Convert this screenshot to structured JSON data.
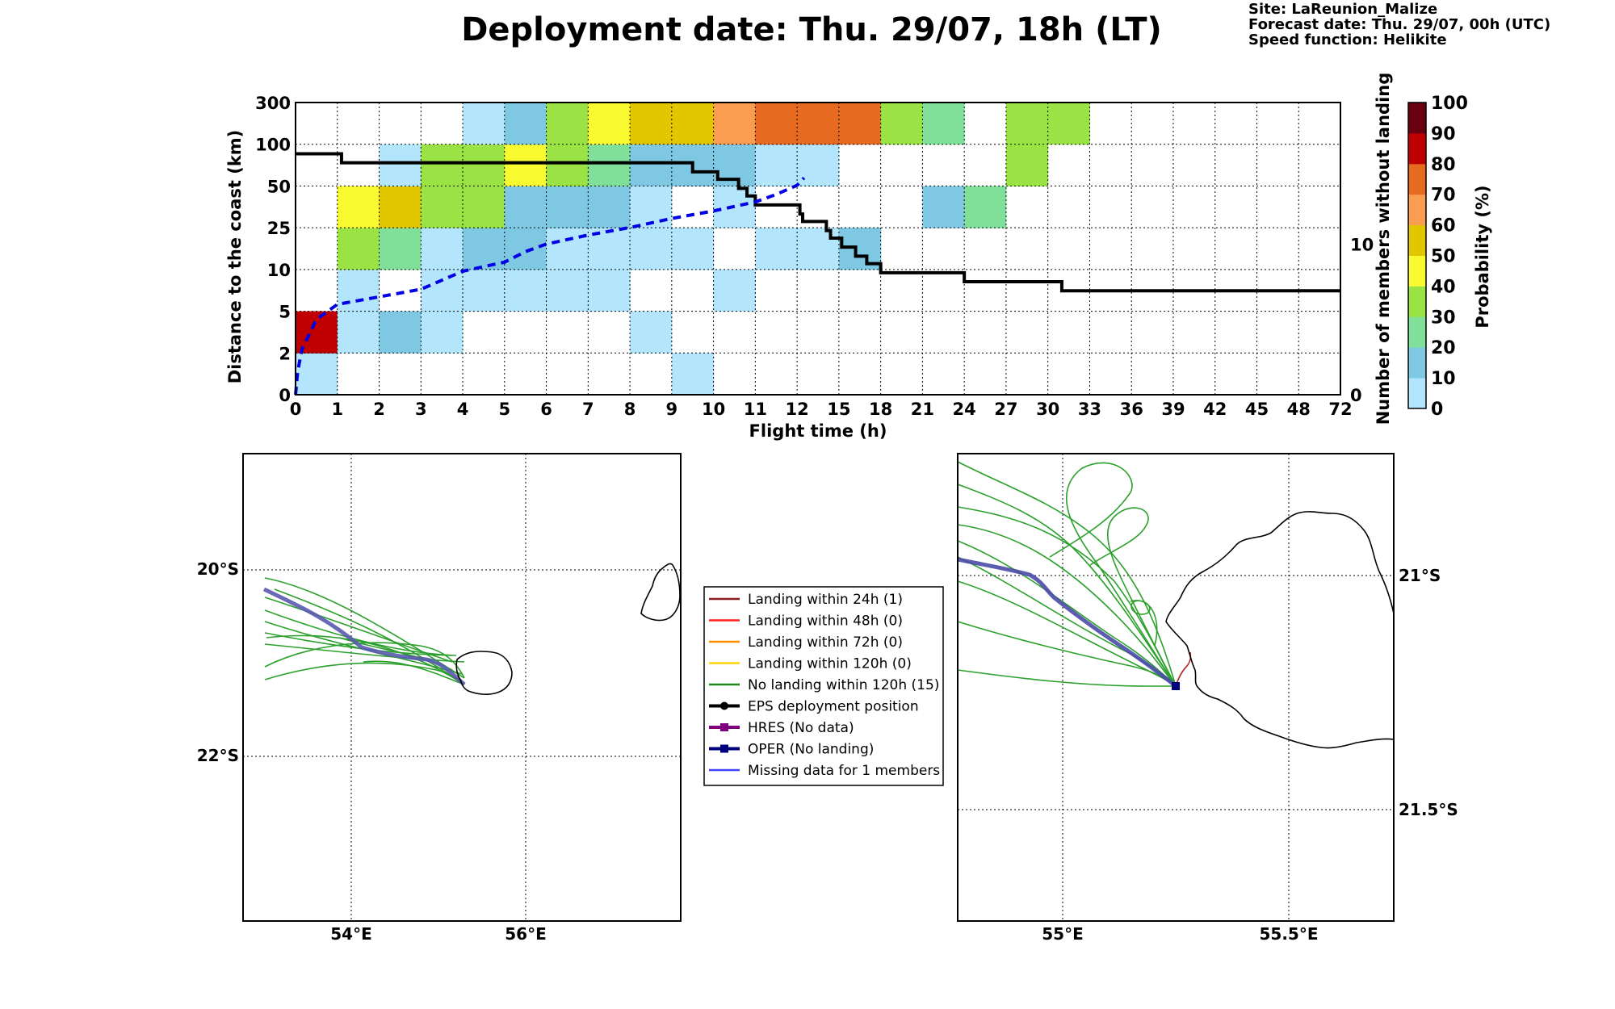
{
  "header": {
    "title": "Deployment date: Thu. 29/07, 18h (LT)",
    "site": "Site: LaReunion_Malize",
    "forecast": "Forecast date: Thu. 29/07, 00h (UTC)",
    "speed": "Speed function: Helikite"
  },
  "chart_data": [
    {
      "type": "heatmap",
      "xlabel": "Flight time (h)",
      "ylabel": "Distance to the coast (km)",
      "y2label": "Number of members without landing",
      "x_ticks": [
        "0",
        "1",
        "2",
        "3",
        "4",
        "5",
        "6",
        "7",
        "8",
        "9",
        "10",
        "11",
        "12",
        "15",
        "18",
        "21",
        "24",
        "27",
        "30",
        "33",
        "36",
        "39",
        "42",
        "45",
        "48",
        "72"
      ],
      "y_ticks": [
        "0",
        "2",
        "5",
        "10",
        "25",
        "50",
        "100",
        "300"
      ],
      "y2_ticks": [
        "0",
        "10"
      ],
      "colorbar": {
        "label": "Probability (%)",
        "ticks": [
          "0",
          "10",
          "20",
          "30",
          "40",
          "50",
          "60",
          "70",
          "80",
          "90",
          "100"
        ],
        "colors": [
          "#b3e5fc",
          "#7ec8e3",
          "#80e099",
          "#9be245",
          "#fafa30",
          "#e1c600",
          "#fa9d50",
          "#e66a20",
          "#c00000",
          "#680010"
        ]
      },
      "rows_from_bottom_0_2_5_10_25_50_100_300": [
        [
          0,
          null,
          null,
          null,
          null,
          null,
          null,
          null,
          null,
          0,
          null,
          null,
          null,
          null,
          null,
          null,
          null,
          null,
          null,
          null,
          null,
          null,
          null,
          null,
          null
        ],
        [
          8,
          0,
          1,
          0,
          null,
          null,
          null,
          null,
          0,
          null,
          null,
          null,
          null,
          null,
          null,
          null,
          null,
          null,
          null,
          null,
          null,
          null,
          null,
          null,
          null
        ],
        [
          null,
          0,
          null,
          0,
          0,
          0,
          0,
          0,
          null,
          null,
          0,
          null,
          null,
          null,
          null,
          null,
          null,
          null,
          null,
          null,
          null,
          null,
          null,
          null,
          null
        ],
        [
          null,
          3,
          2,
          0,
          1,
          1,
          0,
          0,
          0,
          0,
          null,
          0,
          0,
          1,
          null,
          null,
          null,
          null,
          null,
          null,
          null,
          null,
          null,
          null,
          null
        ],
        [
          null,
          4,
          5,
          3,
          3,
          1,
          1,
          1,
          0,
          null,
          0,
          null,
          null,
          null,
          null,
          1,
          2,
          null,
          null,
          null,
          null,
          null,
          null,
          null,
          null
        ],
        [
          null,
          null,
          0,
          3,
          3,
          4,
          3,
          2,
          1,
          1,
          1,
          0,
          0,
          null,
          null,
          null,
          null,
          3,
          null,
          null,
          null,
          null,
          null,
          null,
          null
        ],
        [
          null,
          null,
          null,
          null,
          0,
          1,
          3,
          4,
          5,
          5,
          6,
          7,
          7,
          7,
          3,
          2,
          null,
          3,
          3,
          null,
          null,
          null,
          null,
          null,
          null
        ]
      ],
      "series": [
        {
          "name": "members without landing",
          "style": "black solid step",
          "x": [
            0,
            1,
            1.1,
            8.7,
            9.5,
            10.1,
            10.6,
            10.8,
            11,
            12,
            12.2,
            12.4,
            13.8,
            14.1,
            14.4,
            15.2,
            16.2,
            17,
            18,
            23.8,
            24,
            30.9,
            31,
            72
          ],
          "y": [
            16,
            16,
            15.4,
            15.4,
            14.8,
            14.3,
            13.7,
            13.2,
            12.6,
            12.6,
            12,
            11.5,
            11.5,
            10.9,
            10.4,
            9.8,
            9.2,
            8.7,
            8.1,
            8.1,
            7.5,
            7.5,
            6.9,
            6.9
          ]
        },
        {
          "name": "cumulative landing (dashed)",
          "style": "blue dashed",
          "x": [
            0,
            0.05,
            0.15,
            0.5,
            1,
            2,
            3,
            3.5,
            4,
            5,
            5.5,
            6,
            7,
            8,
            9,
            10,
            11,
            11.5,
            12,
            12.5
          ],
          "y": [
            0,
            1.5,
            3,
            5,
            6,
            6.5,
            7,
            7.6,
            8.2,
            8.8,
            9.5,
            10,
            10.6,
            11.1,
            11.7,
            12.2,
            12.8,
            13.3,
            13.9,
            14.4
          ]
        }
      ]
    }
  ],
  "maps": {
    "left": {
      "lat_labels": [
        "20°S",
        "22°S"
      ],
      "lon_labels": [
        "54°E",
        "56°E"
      ]
    },
    "right": {
      "lat_labels": [
        "21°S",
        "21.5°S"
      ],
      "lon_labels": [
        "55°E",
        "55.5°E"
      ]
    }
  },
  "legend": [
    {
      "label": "Landing within 24h (1)",
      "color": "#8b1a1a",
      "marker": ""
    },
    {
      "label": "Landing within 48h (0)",
      "color": "#ff2020",
      "marker": ""
    },
    {
      "label": "Landing within 72h (0)",
      "color": "#ff8c00",
      "marker": ""
    },
    {
      "label": "Landing within 120h (0)",
      "color": "#ffd700",
      "marker": ""
    },
    {
      "label": "No landing within 120h (15)",
      "color": "#1a8a1a",
      "marker": ""
    },
    {
      "label": "EPS deployment position",
      "color": "#000000",
      "marker": "circle"
    },
    {
      "label": "HRES (No data)",
      "color": "#800080",
      "marker": "square"
    },
    {
      "label": "OPER (No landing)",
      "color": "#00007f",
      "marker": "square"
    },
    {
      "label": "Missing data for 1 members",
      "color": "#4040ff",
      "marker": ""
    }
  ]
}
